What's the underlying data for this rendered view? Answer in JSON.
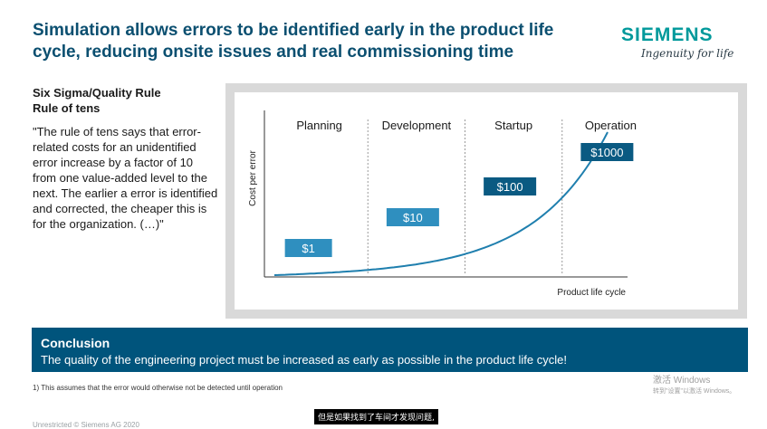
{
  "slide": {
    "title": "Simulation allows errors to be identified early in the product life cycle, reducing onsite issues and real commissioning time",
    "logo": {
      "name": "SIEMENS",
      "tagline": "Ingenuity for life"
    },
    "rule_heading_line1": "Six Sigma/Quality Rule",
    "rule_heading_line2": "Rule of tens",
    "quote": "\"The rule of tens says that error-related costs for an unidentified error increase by a factor of 10 from one value-added level to the next. The earlier a error is identified and corrected, the cheaper this is for the organization. (…)\"",
    "conclusion": {
      "title": "Conclusion",
      "text": "The quality of the engineering project must be increased as early as possible in the product life cycle!"
    },
    "footnote": "1) This assumes that the error would otherwise not be detected until operation",
    "copyright": "Unrestricted © Siemens AG 2020"
  },
  "overlay": {
    "activate_title": "激活 Windows",
    "activate_sub": "转到\"设置\"以激活 Windows。",
    "caption": "但是如果找到了车间才发现问题,"
  },
  "colors": {
    "title": "#0b4f70",
    "brand": "#00999b",
    "box_light": "#2f8fbf",
    "box_dark": "#0a5a82",
    "curve": "#1f7fae",
    "conclusion_bg": "#00547c"
  },
  "chart_data": {
    "type": "line",
    "title": "",
    "xlabel": "Product life cycle",
    "ylabel": "Cost per error",
    "categories": [
      "Planning",
      "Development",
      "Startup",
      "Operation"
    ],
    "values": [
      1,
      10,
      100,
      1000
    ],
    "value_labels": [
      "$1",
      "$10",
      "$100",
      "$1000"
    ],
    "scale": "exponential",
    "grid": false
  }
}
